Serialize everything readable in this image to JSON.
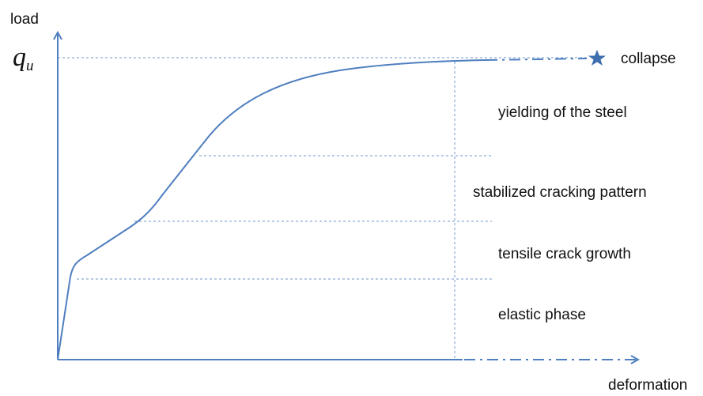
{
  "axes": {
    "y_label": "load",
    "x_label": "deformation",
    "y_value_symbol": "q",
    "y_value_subscript": "u"
  },
  "phases": [
    {
      "id": "elastic",
      "label": "elastic phase"
    },
    {
      "id": "tensile",
      "label": "tensile crack growth"
    },
    {
      "id": "stabilized",
      "label": "stabilized cracking pattern"
    },
    {
      "id": "yielding",
      "label": "yielding of the steel"
    }
  ],
  "end_point": {
    "label": "collapse",
    "marker": "star-icon"
  },
  "colors": {
    "curve": "#4f7fbf",
    "guide": "#6f95cc",
    "star": "#3f6fae",
    "text": "#111111"
  }
}
